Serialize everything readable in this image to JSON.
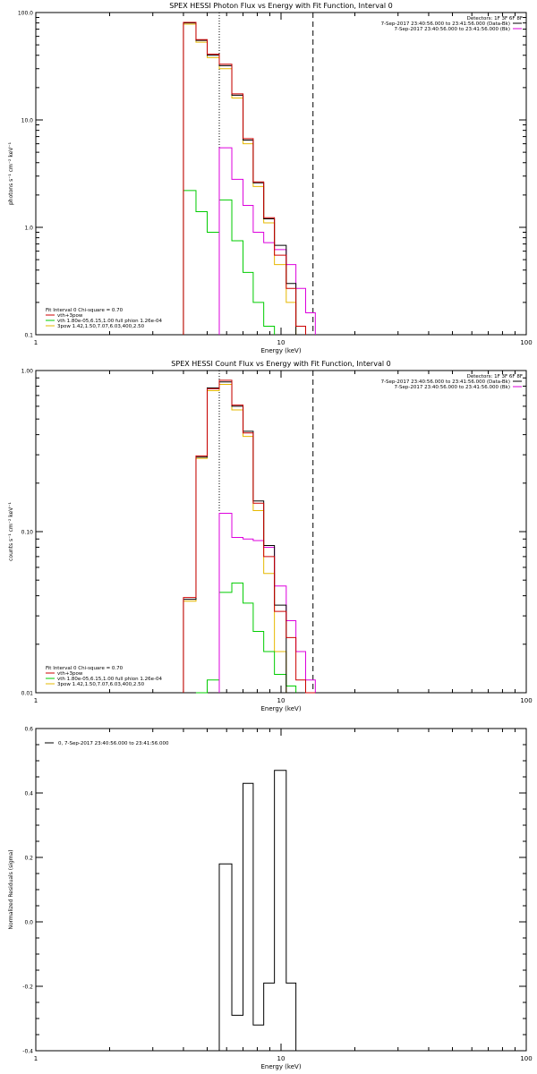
{
  "chart_data": [
    {
      "type": "line",
      "title": "SPEX HESSI Photon Flux vs Energy with Fit Function, Interval 0",
      "xlabel": "Energy (keV)",
      "ylabel": "photons s⁻¹ cm⁻² keV⁻¹",
      "xscale": "log",
      "yscale": "log",
      "xlim": [
        1,
        100
      ],
      "ylim": [
        0.1,
        100
      ],
      "xticks": [
        {
          "v": 1,
          "label": "1"
        },
        {
          "v": 10,
          "label": "10"
        },
        {
          "v": 100,
          "label": "100"
        }
      ],
      "yticks": [
        {
          "v": 0.1,
          "label": "0.1"
        },
        {
          "v": 1,
          "label": "1.0"
        },
        {
          "v": 10,
          "label": "10.0"
        },
        {
          "v": 100,
          "label": "100.0"
        }
      ],
      "vlines": [
        {
          "x": 5.6,
          "style": "dotted"
        },
        {
          "x": 13.5,
          "style": "dashed"
        }
      ],
      "legend_right": {
        "header": "Detectors: 1F 3F 6F 8F",
        "items": [
          {
            "text": "7-Sep-2017 23:40:56.000 to 23:41:56.000 (Data-Bk)",
            "color": "#000000"
          },
          {
            "text": "7-Sep-2017 23:40:56.000 to 23:41:56.000 (Bk)",
            "color": "#dd00dd"
          }
        ]
      },
      "legend_left": {
        "header": "Fit Interval 0   Chi-square = 0.70",
        "items": [
          {
            "text": "vth+3pow",
            "color": "#cc0000"
          },
          {
            "text": "vth 1.80e-05,6.15,1.00  full phion 1.26e-04",
            "color": "#00cc00"
          },
          {
            "text": "3pow 1.42,1.50,7.07,6.03,400,2.50",
            "color": "#e6b800"
          }
        ]
      },
      "edges": [
        4,
        4.5,
        5,
        5.6,
        6.3,
        7,
        7.7,
        8.5,
        9.4,
        10.5,
        11.5,
        12.6,
        13.8,
        15
      ],
      "series": [
        {
          "name": "Data-Bk",
          "color": "#000000",
          "values": [
            80,
            55,
            40,
            32,
            17,
            6.5,
            2.6,
            1.2,
            0.68,
            0.3,
            0.1,
            null,
            null
          ]
        },
        {
          "name": "Bk",
          "color": "#dd00dd",
          "values": [
            null,
            null,
            null,
            5.5,
            2.8,
            1.6,
            0.9,
            0.72,
            0.62,
            0.45,
            0.27,
            0.16,
            null
          ]
        },
        {
          "name": "vth+3pow",
          "color": "#cc0000",
          "values": [
            81,
            56,
            41,
            33,
            17.5,
            6.7,
            2.65,
            1.23,
            0.55,
            0.27,
            0.12,
            null,
            null
          ]
        },
        {
          "name": "vth",
          "color": "#00cc00",
          "values": [
            2.2,
            1.4,
            0.9,
            1.8,
            0.75,
            0.38,
            0.2,
            0.12,
            null,
            null,
            null,
            null,
            null
          ]
        },
        {
          "name": "3pow",
          "color": "#e6b800",
          "values": [
            78,
            53,
            38,
            30,
            16,
            6,
            2.4,
            1.1,
            0.45,
            0.2,
            0.1,
            null,
            null
          ]
        }
      ]
    },
    {
      "type": "line",
      "title": "SPEX HESSI Count Flux vs Energy with Fit Function, Interval 0",
      "xlabel": "Energy (keV)",
      "ylabel": "counts s⁻¹ cm⁻² keV⁻¹",
      "xscale": "log",
      "yscale": "log",
      "xlim": [
        1,
        100
      ],
      "ylim": [
        0.01,
        1
      ],
      "xticks": [
        {
          "v": 1,
          "label": "1"
        },
        {
          "v": 10,
          "label": "10"
        },
        {
          "v": 100,
          "label": "100"
        }
      ],
      "yticks": [
        {
          "v": 0.01,
          "label": "0.01"
        },
        {
          "v": 0.1,
          "label": "0.10"
        },
        {
          "v": 1,
          "label": "1.00"
        }
      ],
      "vlines": [
        {
          "x": 5.6,
          "style": "dotted"
        },
        {
          "x": 13.5,
          "style": "dashed"
        }
      ],
      "legend_right": {
        "header": "Detectors: 1F 3F 6F 8F",
        "items": [
          {
            "text": "7-Sep-2017 23:40:56.000 to 23:41:56.000 (Data-Bk)",
            "color": "#000000"
          },
          {
            "text": "7-Sep-2017 23:40:56.000 to 23:41:56.000 (Bk)",
            "color": "#dd00dd"
          }
        ]
      },
      "legend_left": {
        "header": "Fit Interval 0   Chi-square = 0.70",
        "items": [
          {
            "text": "vth+3pow",
            "color": "#cc0000"
          },
          {
            "text": "vth 1.80e-05,6.15,1.00  full phion 1.26e-04",
            "color": "#00cc00"
          },
          {
            "text": "3pow 1.42,1.50,7.07,6.03,400,2.50",
            "color": "#e6b800"
          }
        ]
      },
      "edges": [
        3.5,
        4,
        4.5,
        5,
        5.6,
        6.3,
        7,
        7.7,
        8.5,
        9.4,
        10.5,
        11.5,
        12.6,
        13.8,
        15,
        16.5
      ],
      "series": [
        {
          "name": "Data-Bk",
          "color": "#000000",
          "values": [
            null,
            0.038,
            0.29,
            0.78,
            0.85,
            0.6,
            0.42,
            0.155,
            0.082,
            0.035,
            0.01,
            null,
            null,
            null,
            null
          ]
        },
        {
          "name": "Bk",
          "color": "#dd00dd",
          "values": [
            null,
            null,
            null,
            null,
            0.13,
            0.092,
            0.09,
            0.088,
            0.08,
            0.046,
            0.028,
            0.018,
            0.012,
            null,
            null
          ]
        },
        {
          "name": "vth+3pow",
          "color": "#cc0000",
          "values": [
            null,
            0.039,
            0.295,
            0.77,
            0.87,
            0.61,
            0.41,
            0.15,
            0.07,
            0.032,
            0.022,
            0.012,
            0.01,
            null,
            null
          ]
        },
        {
          "name": "vth",
          "color": "#00cc00",
          "values": [
            null,
            null,
            0.0095,
            0.012,
            0.042,
            0.048,
            0.036,
            0.024,
            0.018,
            0.013,
            0.011,
            null,
            null,
            null,
            null
          ]
        },
        {
          "name": "3pow",
          "color": "#e6b800",
          "values": [
            null,
            0.037,
            0.285,
            0.75,
            0.82,
            0.57,
            0.39,
            0.135,
            0.055,
            0.018,
            null,
            null,
            null,
            null,
            null
          ]
        }
      ]
    },
    {
      "type": "line",
      "title": "",
      "xlabel": "Energy (keV)",
      "ylabel": "Normalized Residuals (sigma)",
      "xscale": "log",
      "yscale": "linear",
      "xlim": [
        1,
        100
      ],
      "ylim": [
        -0.4,
        0.6
      ],
      "xticks": [
        {
          "v": 1,
          "label": "1"
        },
        {
          "v": 10,
          "label": "10"
        },
        {
          "v": 100,
          "label": "100"
        }
      ],
      "yticks": [
        {
          "v": -0.4,
          "label": "-0.4"
        },
        {
          "v": -0.2,
          "label": "-0.2"
        },
        {
          "v": 0,
          "label": "0.0"
        },
        {
          "v": 0.2,
          "label": "0.2"
        },
        {
          "v": 0.4,
          "label": "0.4"
        },
        {
          "v": 0.6,
          "label": "0.6"
        }
      ],
      "legend_left": {
        "header": "",
        "items": [
          {
            "text": "0, 7-Sep-2017 23:40:56.000 to 23:41:56.000",
            "color": "#000000"
          }
        ]
      },
      "edges": [
        5.6,
        6.3,
        7,
        7.7,
        8.5,
        9.4,
        10.5,
        11.5,
        12.6,
        13.8
      ],
      "series": [
        {
          "name": "",
          "color": "#000000",
          "values": [
            0.18,
            -0.29,
            0.43,
            -0.32,
            -0.19,
            0.47,
            -0.19,
            null,
            null
          ]
        }
      ]
    }
  ]
}
